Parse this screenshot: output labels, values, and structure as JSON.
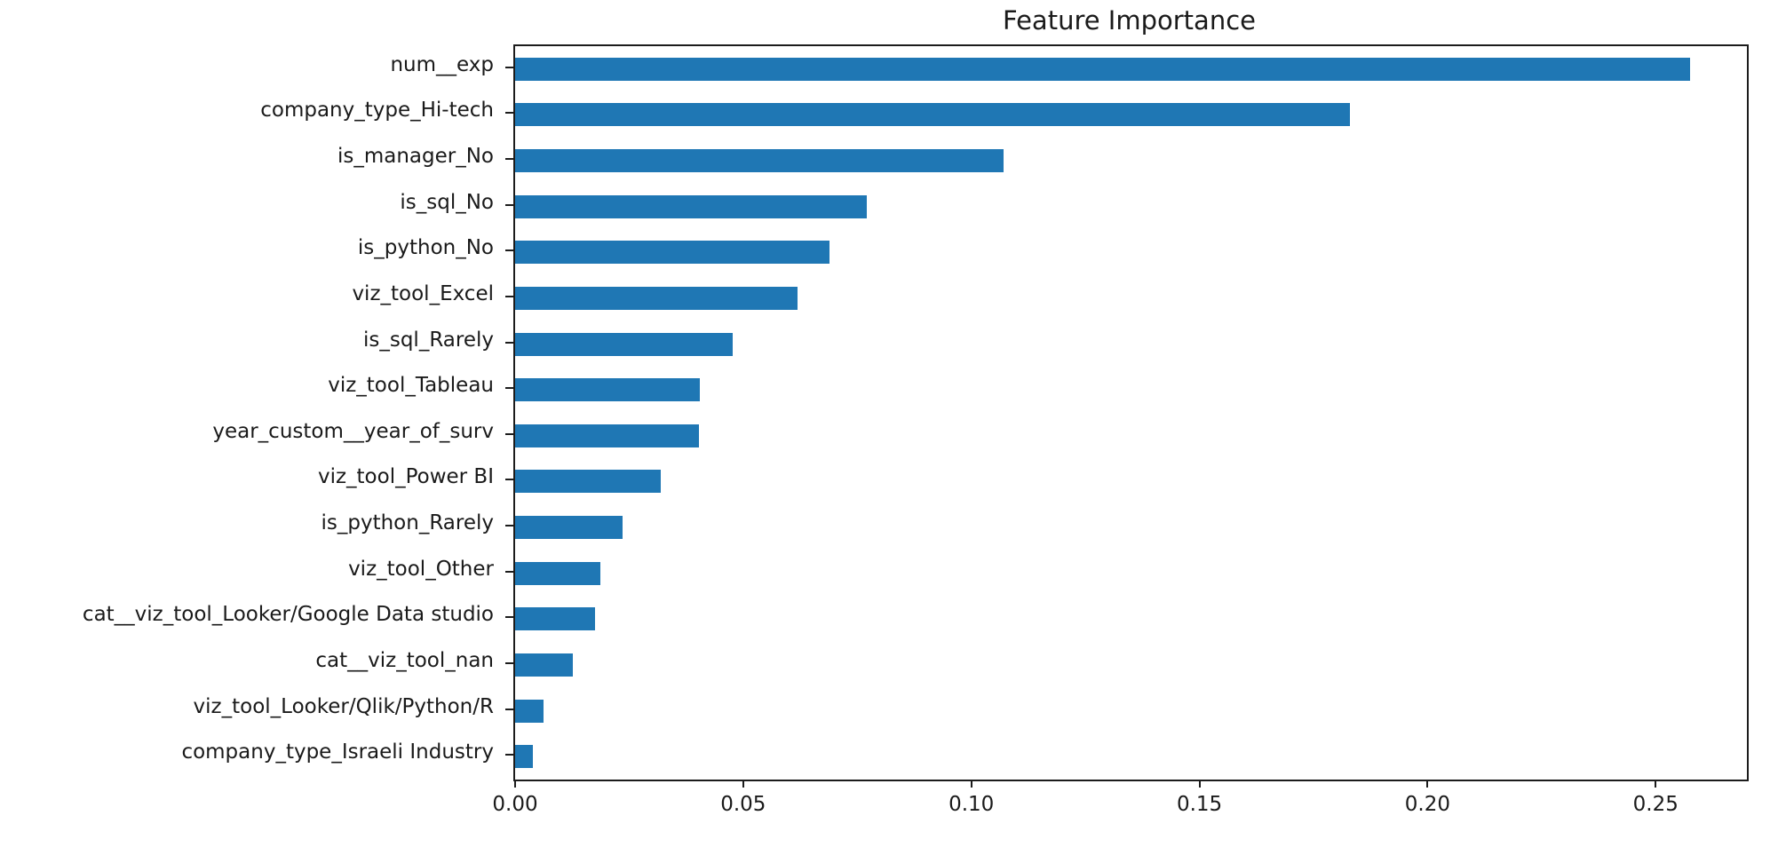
{
  "chart_data": {
    "type": "bar",
    "orientation": "horizontal",
    "title": "Feature Importance",
    "categories": [
      "num__exp",
      "company_type_Hi-tech",
      "is_manager_No",
      "is_sql_No",
      "is_python_No",
      "viz_tool_Excel",
      "is_sql_Rarely",
      "viz_tool_Tableau",
      "year_custom__year_of_surv",
      "viz_tool_Power BI",
      "is_python_Rarely",
      "viz_tool_Other",
      "cat__viz_tool_Looker/Google Data studio",
      "cat__viz_tool_nan",
      "viz_tool_Looker/Qlik/Python/R",
      "company_type_Israeli Industry"
    ],
    "values": [
      0.2575,
      0.183,
      0.107,
      0.077,
      0.069,
      0.062,
      0.0476,
      0.0404,
      0.0402,
      0.032,
      0.0236,
      0.0187,
      0.0175,
      0.0126,
      0.0062,
      0.0038
    ],
    "xlabel": "",
    "ylabel": "",
    "xlim": [
      0,
      0.27
    ],
    "x_tick_labels": [
      "0.00",
      "0.05",
      "0.10",
      "0.15",
      "0.20",
      "0.25"
    ],
    "grid": false,
    "legend": false,
    "bar_color": "#1f77b4",
    "axis_color": "#1c1c1c",
    "text_color": "#1a1a1a",
    "background_color": "#ffffff"
  }
}
